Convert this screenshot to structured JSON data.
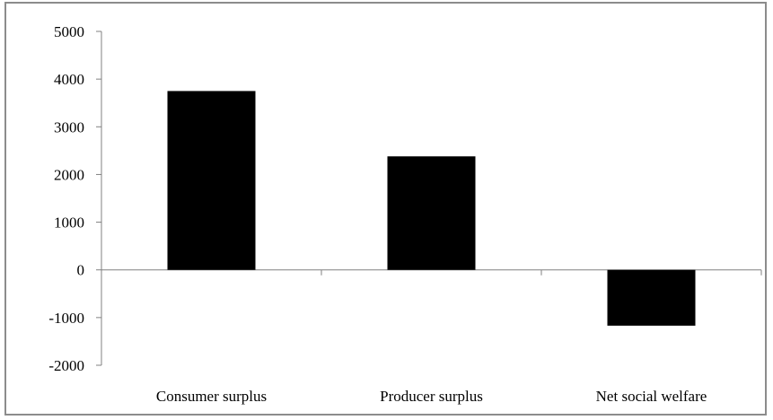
{
  "chart_data": {
    "type": "bar",
    "title": "",
    "xlabel": "",
    "ylabel": "",
    "categories": [
      "Consumer surplus",
      "Producer surplus",
      "Net social welfare"
    ],
    "values": [
      3750,
      2380,
      -1170
    ],
    "ylim": [
      -2000,
      5000
    ],
    "yticks": [
      5000,
      4000,
      3000,
      2000,
      1000,
      0,
      -1000,
      -2000
    ],
    "ytick_labels": [
      "5000",
      "4000",
      "3000",
      "2000",
      "1000",
      "0",
      "-1000",
      "-2000"
    ],
    "grid": false,
    "legend": "none",
    "bar_color": "#000000",
    "axis_color": "#808080"
  }
}
